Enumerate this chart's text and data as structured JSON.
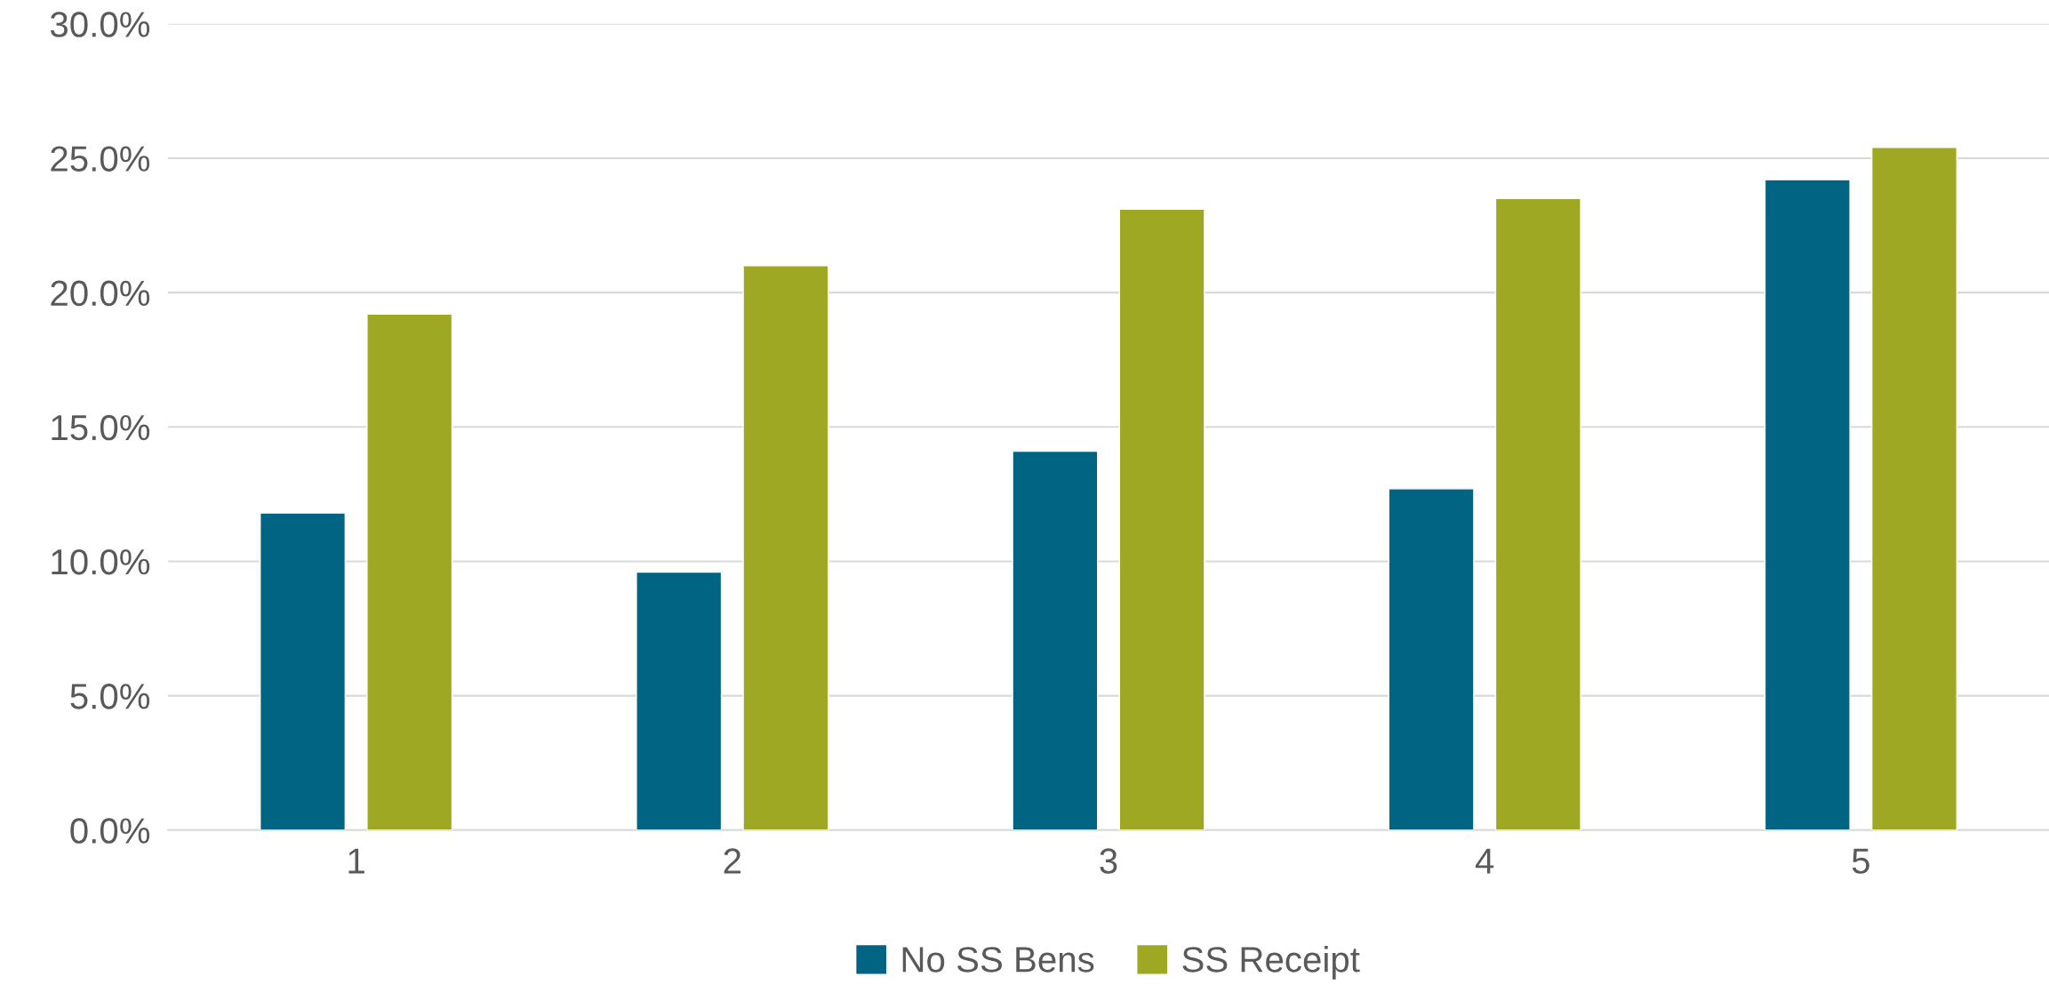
{
  "chart_data": {
    "type": "bar",
    "categories": [
      "1",
      "2",
      "3",
      "4",
      "5"
    ],
    "series": [
      {
        "name": "No SS Bens",
        "color": "#006482",
        "values": [
          11.8,
          9.6,
          14.1,
          12.7,
          24.2
        ]
      },
      {
        "name": "SS Receipt",
        "color": "#9ea822",
        "values": [
          19.2,
          21.0,
          23.1,
          23.5,
          25.4
        ]
      }
    ],
    "ylim": [
      0,
      30
    ],
    "yticks": [
      {
        "value": 0,
        "label": "0.0%"
      },
      {
        "value": 5,
        "label": "5.0%"
      },
      {
        "value": 10,
        "label": "10.0%"
      },
      {
        "value": 15,
        "label": "15.0%"
      },
      {
        "value": 20,
        "label": "20.0%"
      },
      {
        "value": 25,
        "label": "25.0%"
      },
      {
        "value": 30,
        "label": "30.0%"
      }
    ],
    "grid": "y",
    "legend": "bottom"
  }
}
